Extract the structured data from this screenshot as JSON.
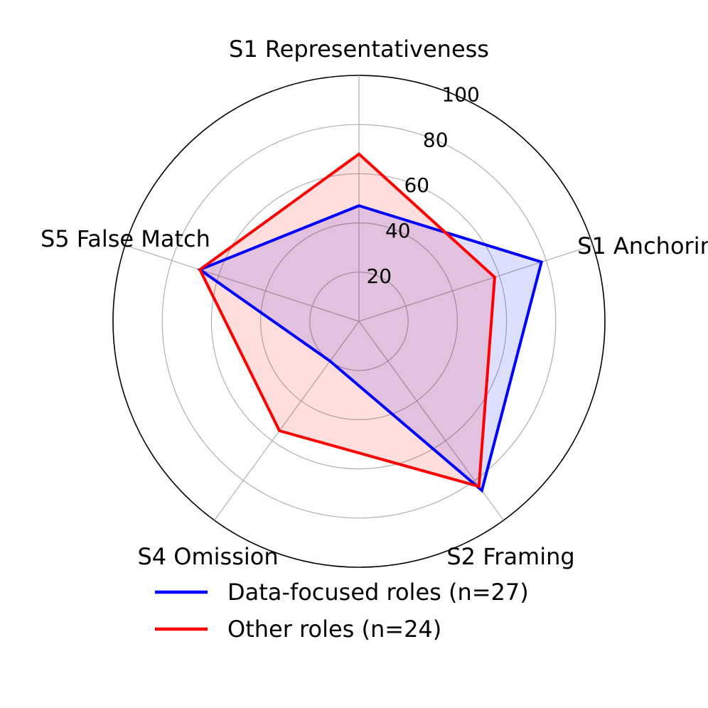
{
  "chart_data": {
    "type": "radar",
    "axes": [
      "S1 Representativeness",
      "S1 Anchoring",
      "S2 Framing",
      "S4 Omission",
      "S5 False Match"
    ],
    "r_range": [
      0,
      100
    ],
    "r_ticks": [
      "20",
      "40",
      "60",
      "80",
      "100"
    ],
    "grid": true,
    "legend_position": "bottom",
    "series": [
      {
        "name": "Data-focused roles (n=27)",
        "color": "#0000ff",
        "fill": "#0000ff",
        "values": [
          47,
          78,
          85,
          20,
          68
        ]
      },
      {
        "name": "Other roles (n=24)",
        "color": "#ff0000",
        "fill": "#ff0000",
        "values": [
          68,
          58,
          83,
          55,
          68
        ]
      }
    ]
  }
}
